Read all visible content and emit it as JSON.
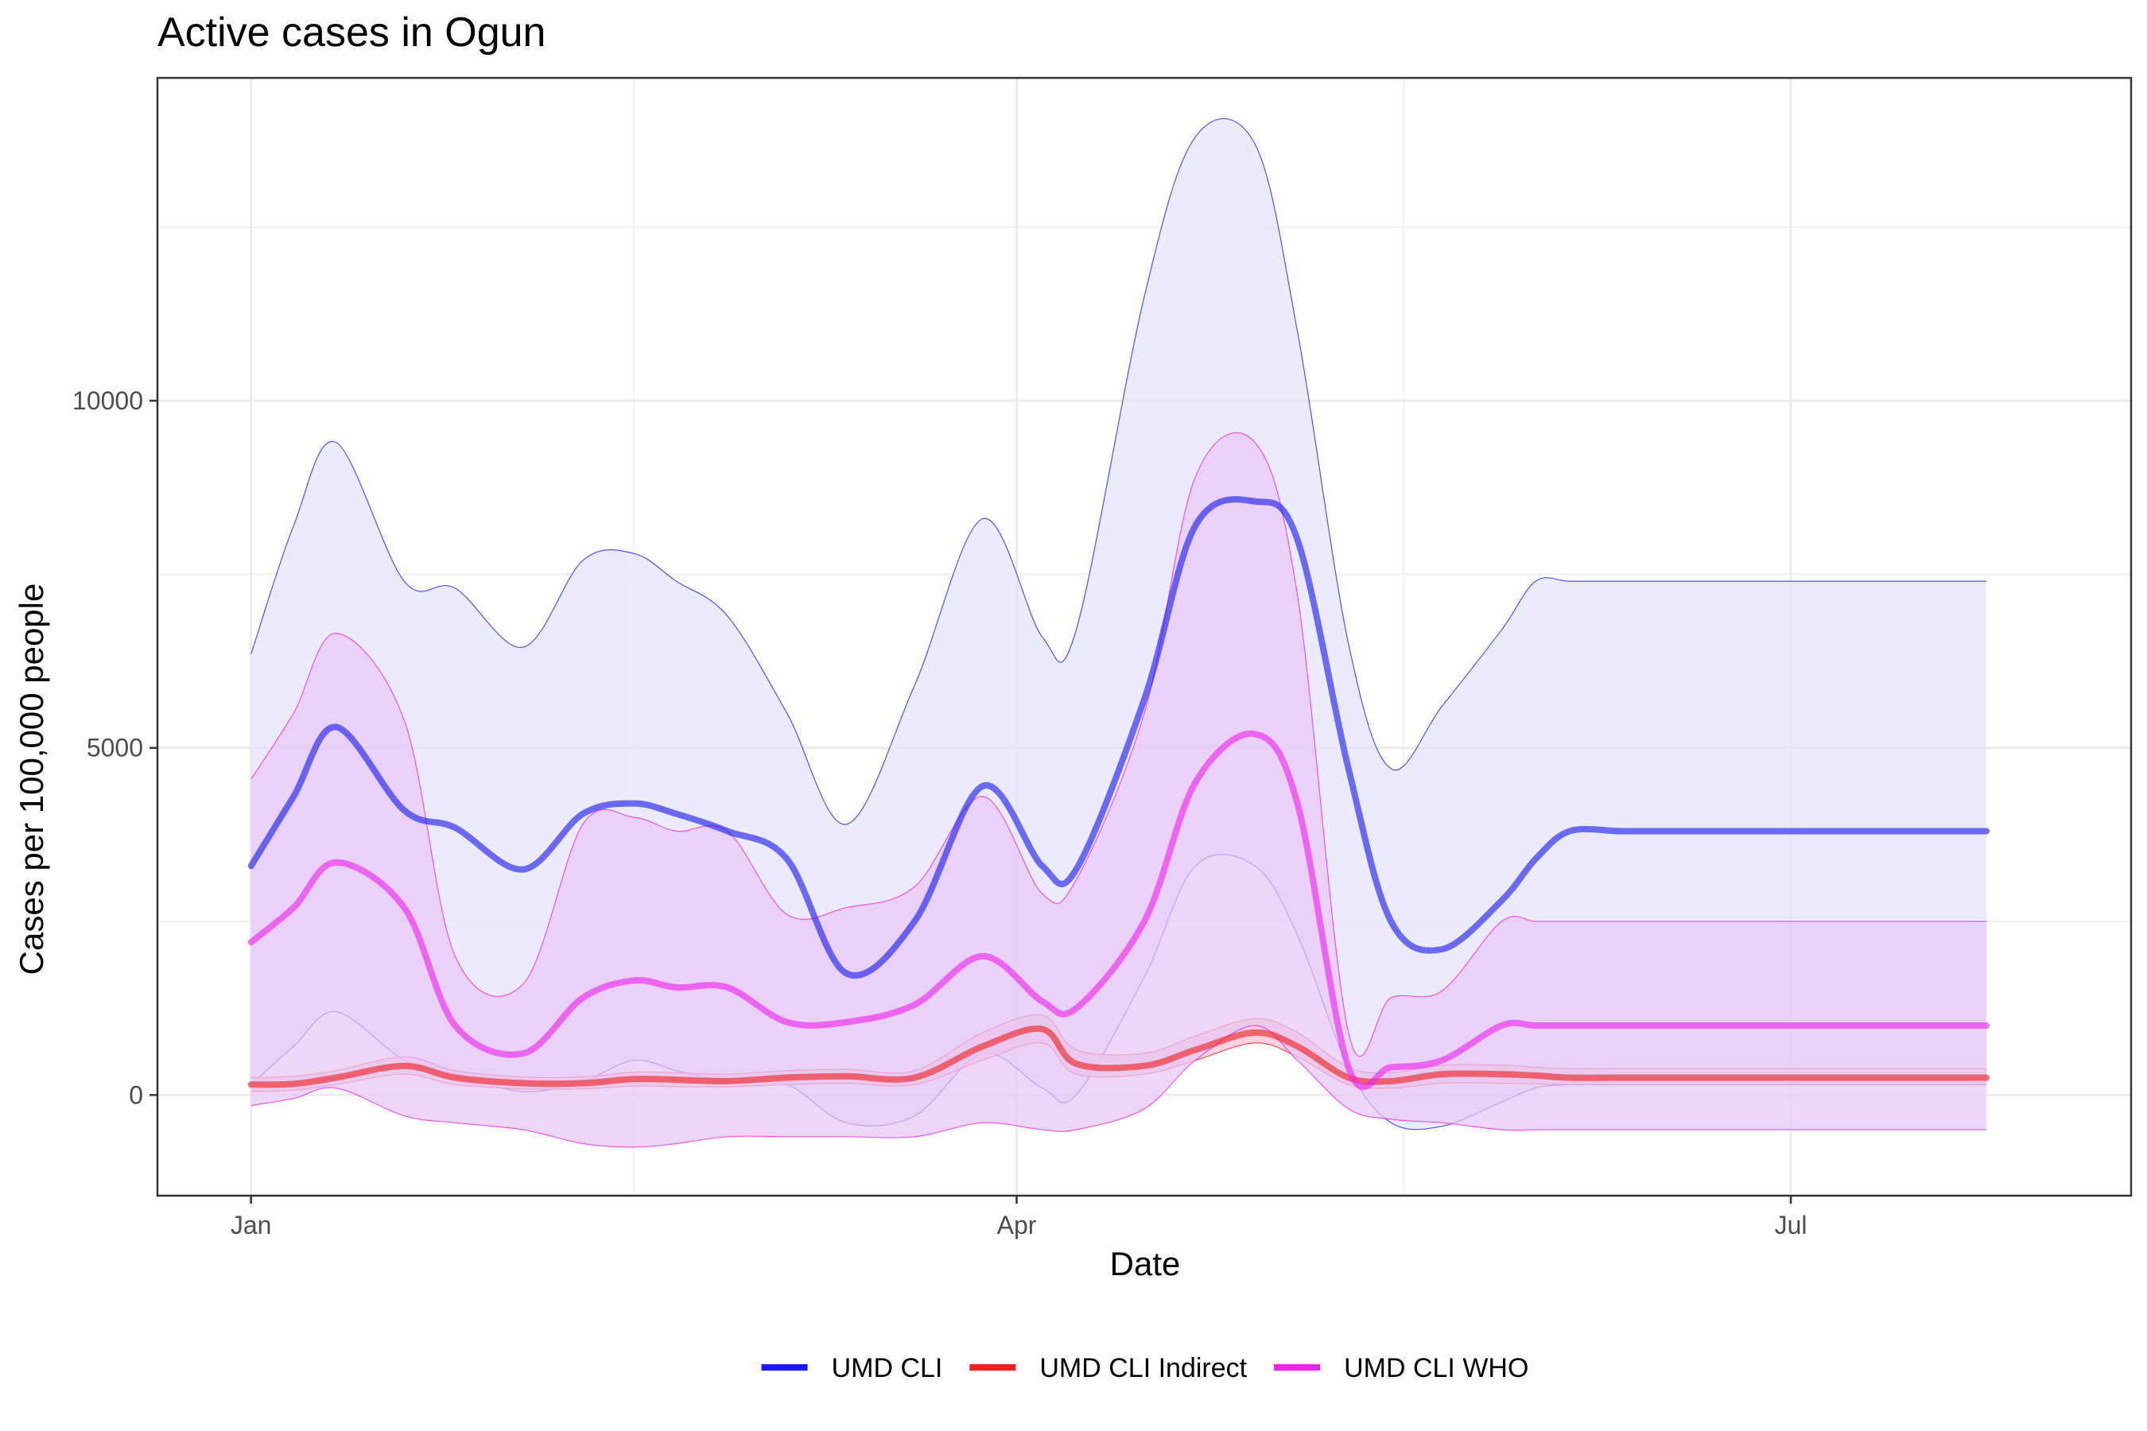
{
  "chart_data": {
    "type": "line",
    "title": "Active cases in Ogun",
    "xlabel": "Date",
    "ylabel": "Cases per 100,000 people",
    "x_ticks": [
      {
        "label": "Jan",
        "date": "2021-01-01"
      },
      {
        "label": "Apr",
        "date": "2021-04-01"
      },
      {
        "label": "Jul",
        "date": "2021-07-01"
      }
    ],
    "x_range": [
      "2020-12-21",
      "2021-08-10"
    ],
    "y_ticks": [
      0,
      5000,
      10000
    ],
    "ylim": [
      -1450,
      14650
    ],
    "grid": true,
    "legend_position": "bottom",
    "x": [
      "2021-01-01",
      "2021-01-06",
      "2021-01-11",
      "2021-01-19",
      "2021-01-25",
      "2021-02-02",
      "2021-02-09",
      "2021-02-15",
      "2021-02-20",
      "2021-02-26",
      "2021-03-05",
      "2021-03-12",
      "2021-03-20",
      "2021-03-28",
      "2021-04-04",
      "2021-04-08",
      "2021-04-16",
      "2021-04-22",
      "2021-04-29",
      "2021-05-04",
      "2021-05-10",
      "2021-05-15",
      "2021-05-21",
      "2021-05-28",
      "2021-06-01",
      "2021-06-05",
      "2021-06-11",
      "2021-06-16",
      "2021-06-23",
      "2021-06-29",
      "2021-07-08",
      "2021-07-17",
      "2021-07-24"
    ],
    "series": [
      {
        "name": "UMD CLI",
        "color": "#1a1aee",
        "band_fill": "#e3e3fb",
        "values": [
          3300,
          4300,
          5300,
          4100,
          3850,
          3250,
          4050,
          4200,
          4050,
          3800,
          3400,
          1750,
          2500,
          4450,
          3300,
          3250,
          5700,
          8200,
          8550,
          8000,
          4700,
          2500,
          2100,
          2800,
          3400,
          3800,
          3800,
          3800,
          3800,
          3800,
          3800,
          3800,
          3800
        ],
        "lower": [
          150,
          700,
          1200,
          500,
          300,
          50,
          200,
          500,
          350,
          200,
          150,
          -400,
          -300,
          600,
          100,
          0,
          1700,
          3300,
          3300,
          2300,
          400,
          -400,
          -450,
          -100,
          100,
          150,
          150,
          150,
          150,
          150,
          150,
          150,
          150
        ],
        "upper": [
          6350,
          8200,
          9400,
          7400,
          7300,
          6450,
          7700,
          7800,
          7400,
          6900,
          5500,
          3900,
          5900,
          8300,
          6600,
          6700,
          11500,
          13800,
          13700,
          11000,
          6500,
          4700,
          5600,
          6700,
          7400,
          7400,
          7400,
          7400,
          7400,
          7400,
          7400,
          7400,
          7400
        ]
      },
      {
        "name": "UMD CLI Indirect",
        "color": "#ee2020",
        "band_fill": "#f5c2d2",
        "values": [
          150,
          160,
          250,
          420,
          250,
          170,
          170,
          230,
          220,
          200,
          250,
          270,
          250,
          700,
          950,
          450,
          420,
          650,
          900,
          700,
          250,
          200,
          300,
          300,
          280,
          250,
          250,
          250,
          250,
          250,
          250,
          250,
          250
        ],
        "lower": [
          50,
          70,
          150,
          300,
          150,
          90,
          90,
          130,
          120,
          120,
          150,
          170,
          150,
          500,
          750,
          300,
          300,
          500,
          750,
          550,
          150,
          100,
          170,
          170,
          160,
          150,
          150,
          150,
          150,
          150,
          150,
          150,
          150
        ],
        "upper": [
          250,
          270,
          350,
          550,
          350,
          260,
          260,
          330,
          320,
          300,
          350,
          370,
          350,
          900,
          1150,
          650,
          600,
          850,
          1100,
          900,
          400,
          320,
          430,
          430,
          400,
          380,
          380,
          380,
          380,
          380,
          380,
          380,
          380
        ]
      },
      {
        "name": "UMD CLI WHO",
        "color": "#ee22ee",
        "band_fill": "#e8c6f7",
        "values": [
          2200,
          2700,
          3350,
          2700,
          1000,
          600,
          1400,
          1650,
          1550,
          1550,
          1050,
          1050,
          1300,
          2000,
          1350,
          1250,
          2500,
          4500,
          5200,
          4200,
          400,
          400,
          500,
          1000,
          1000,
          1000,
          1000,
          1000,
          1000,
          1000,
          1000,
          1000,
          1000
        ],
        "lower": [
          -150,
          -50,
          100,
          -300,
          -400,
          -500,
          -700,
          -750,
          -700,
          -600,
          -600,
          -600,
          -600,
          -400,
          -500,
          -500,
          -200,
          500,
          1000,
          500,
          -200,
          -350,
          -400,
          -500,
          -500,
          -500,
          -500,
          -500,
          -500,
          -500,
          -500,
          -500,
          -500
        ],
        "upper": [
          4550,
          5500,
          6650,
          5400,
          2000,
          1600,
          3900,
          4000,
          3800,
          3800,
          2600,
          2700,
          3000,
          4300,
          2900,
          3100,
          5500,
          8900,
          9400,
          7200,
          900,
          1400,
          1500,
          2500,
          2500,
          2500,
          2500,
          2500,
          2500,
          2500,
          2500,
          2500,
          2500
        ]
      }
    ]
  }
}
